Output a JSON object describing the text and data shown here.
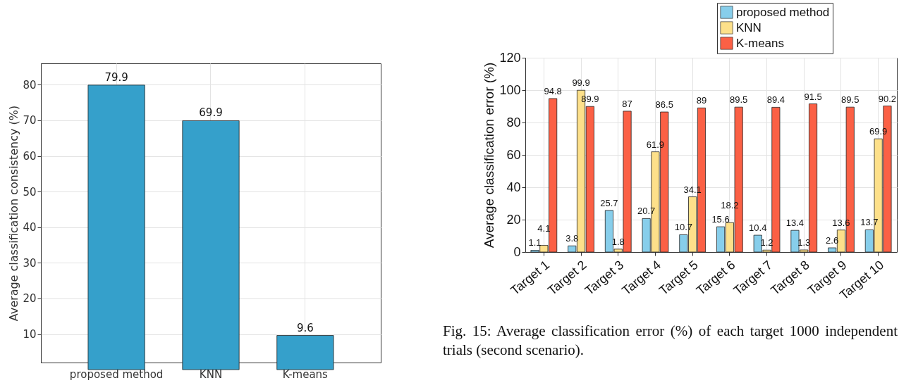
{
  "chart_data": [
    {
      "type": "bar",
      "categories": [
        "proposed method",
        "KNN",
        "K-means"
      ],
      "values": [
        79.9,
        69.9,
        9.6
      ],
      "color": "#35a0cb",
      "ylabel": "Average classification consistency (%)",
      "ylim": [
        2,
        86
      ],
      "yticks": [
        10,
        20,
        30,
        40,
        50,
        60,
        70,
        80
      ],
      "grid": true,
      "data_labels": true
    },
    {
      "type": "bar",
      "categories": [
        "Target 1",
        "Target 2",
        "Target 3",
        "Target 4",
        "Target 5",
        "Target 6",
        "Target 7",
        "Target 8",
        "Target 9",
        "Target 10"
      ],
      "series": [
        {
          "name": "proposed method",
          "color": "#87ceeb",
          "values": [
            1.1,
            3.8,
            25.7,
            20.7,
            10.7,
            15.6,
            10.4,
            13.4,
            2.6,
            13.7
          ]
        },
        {
          "name": "KNN",
          "color": "#fde08a",
          "values": [
            4.1,
            99.9,
            1.8,
            61.9,
            34.1,
            18.2,
            1.2,
            1.3,
            13.6,
            69.9
          ]
        },
        {
          "name": "K-means",
          "color": "#fb6045",
          "values": [
            94.8,
            89.9,
            87,
            86.5,
            89,
            89.5,
            89.4,
            91.5,
            89.5,
            90.2
          ]
        }
      ],
      "ylabel": "Average classification error (%)",
      "ylim": [
        0,
        120
      ],
      "yticks": [
        0,
        20,
        40,
        60,
        80,
        100,
        120
      ],
      "grid": true,
      "legend": "top right",
      "data_labels": true,
      "annotations": [
        "Fig. 15: Average classification error (%) of each target 1000 independent trials (second scenario)."
      ]
    }
  ]
}
